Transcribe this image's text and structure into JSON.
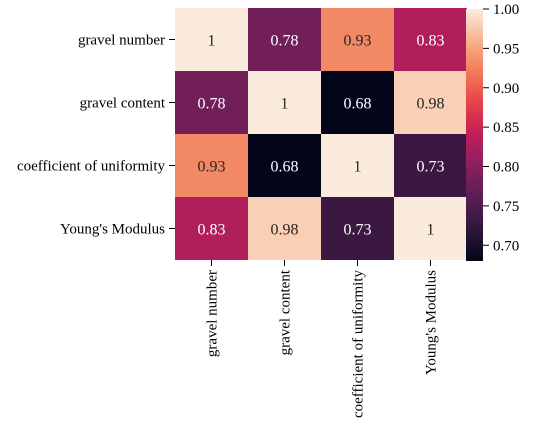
{
  "chart_data": {
    "type": "heatmap",
    "row_labels": [
      "gravel number",
      "gravel content",
      "coefficient of uniformity",
      "Young's Modulus"
    ],
    "col_labels": [
      "gravel number",
      "gravel content",
      "coefficient of uniformity",
      "Young's Modulus"
    ],
    "values": [
      [
        1,
        0.78,
        0.93,
        0.83
      ],
      [
        0.78,
        1,
        0.68,
        0.98
      ],
      [
        0.93,
        0.68,
        1,
        0.73
      ],
      [
        0.83,
        0.98,
        0.73,
        1
      ]
    ],
    "cell_labels": [
      [
        "1",
        "0.78",
        "0.93",
        "0.83"
      ],
      [
        "0.78",
        "1",
        "0.68",
        "0.98"
      ],
      [
        "0.93",
        "0.68",
        "1",
        "0.73"
      ],
      [
        "0.83",
        "0.98",
        "0.73",
        "1"
      ]
    ],
    "colorbar": {
      "min": 0.68,
      "max": 1.0,
      "ticks": [
        0.7,
        0.75,
        0.8,
        0.85,
        0.9,
        0.95,
        1.0
      ],
      "tick_labels": [
        "0.70",
        "0.75",
        "0.80",
        "0.85",
        "0.90",
        "0.95",
        "1.00"
      ],
      "colormap": "rocket"
    },
    "title": "",
    "xlabel": "",
    "ylabel": ""
  }
}
